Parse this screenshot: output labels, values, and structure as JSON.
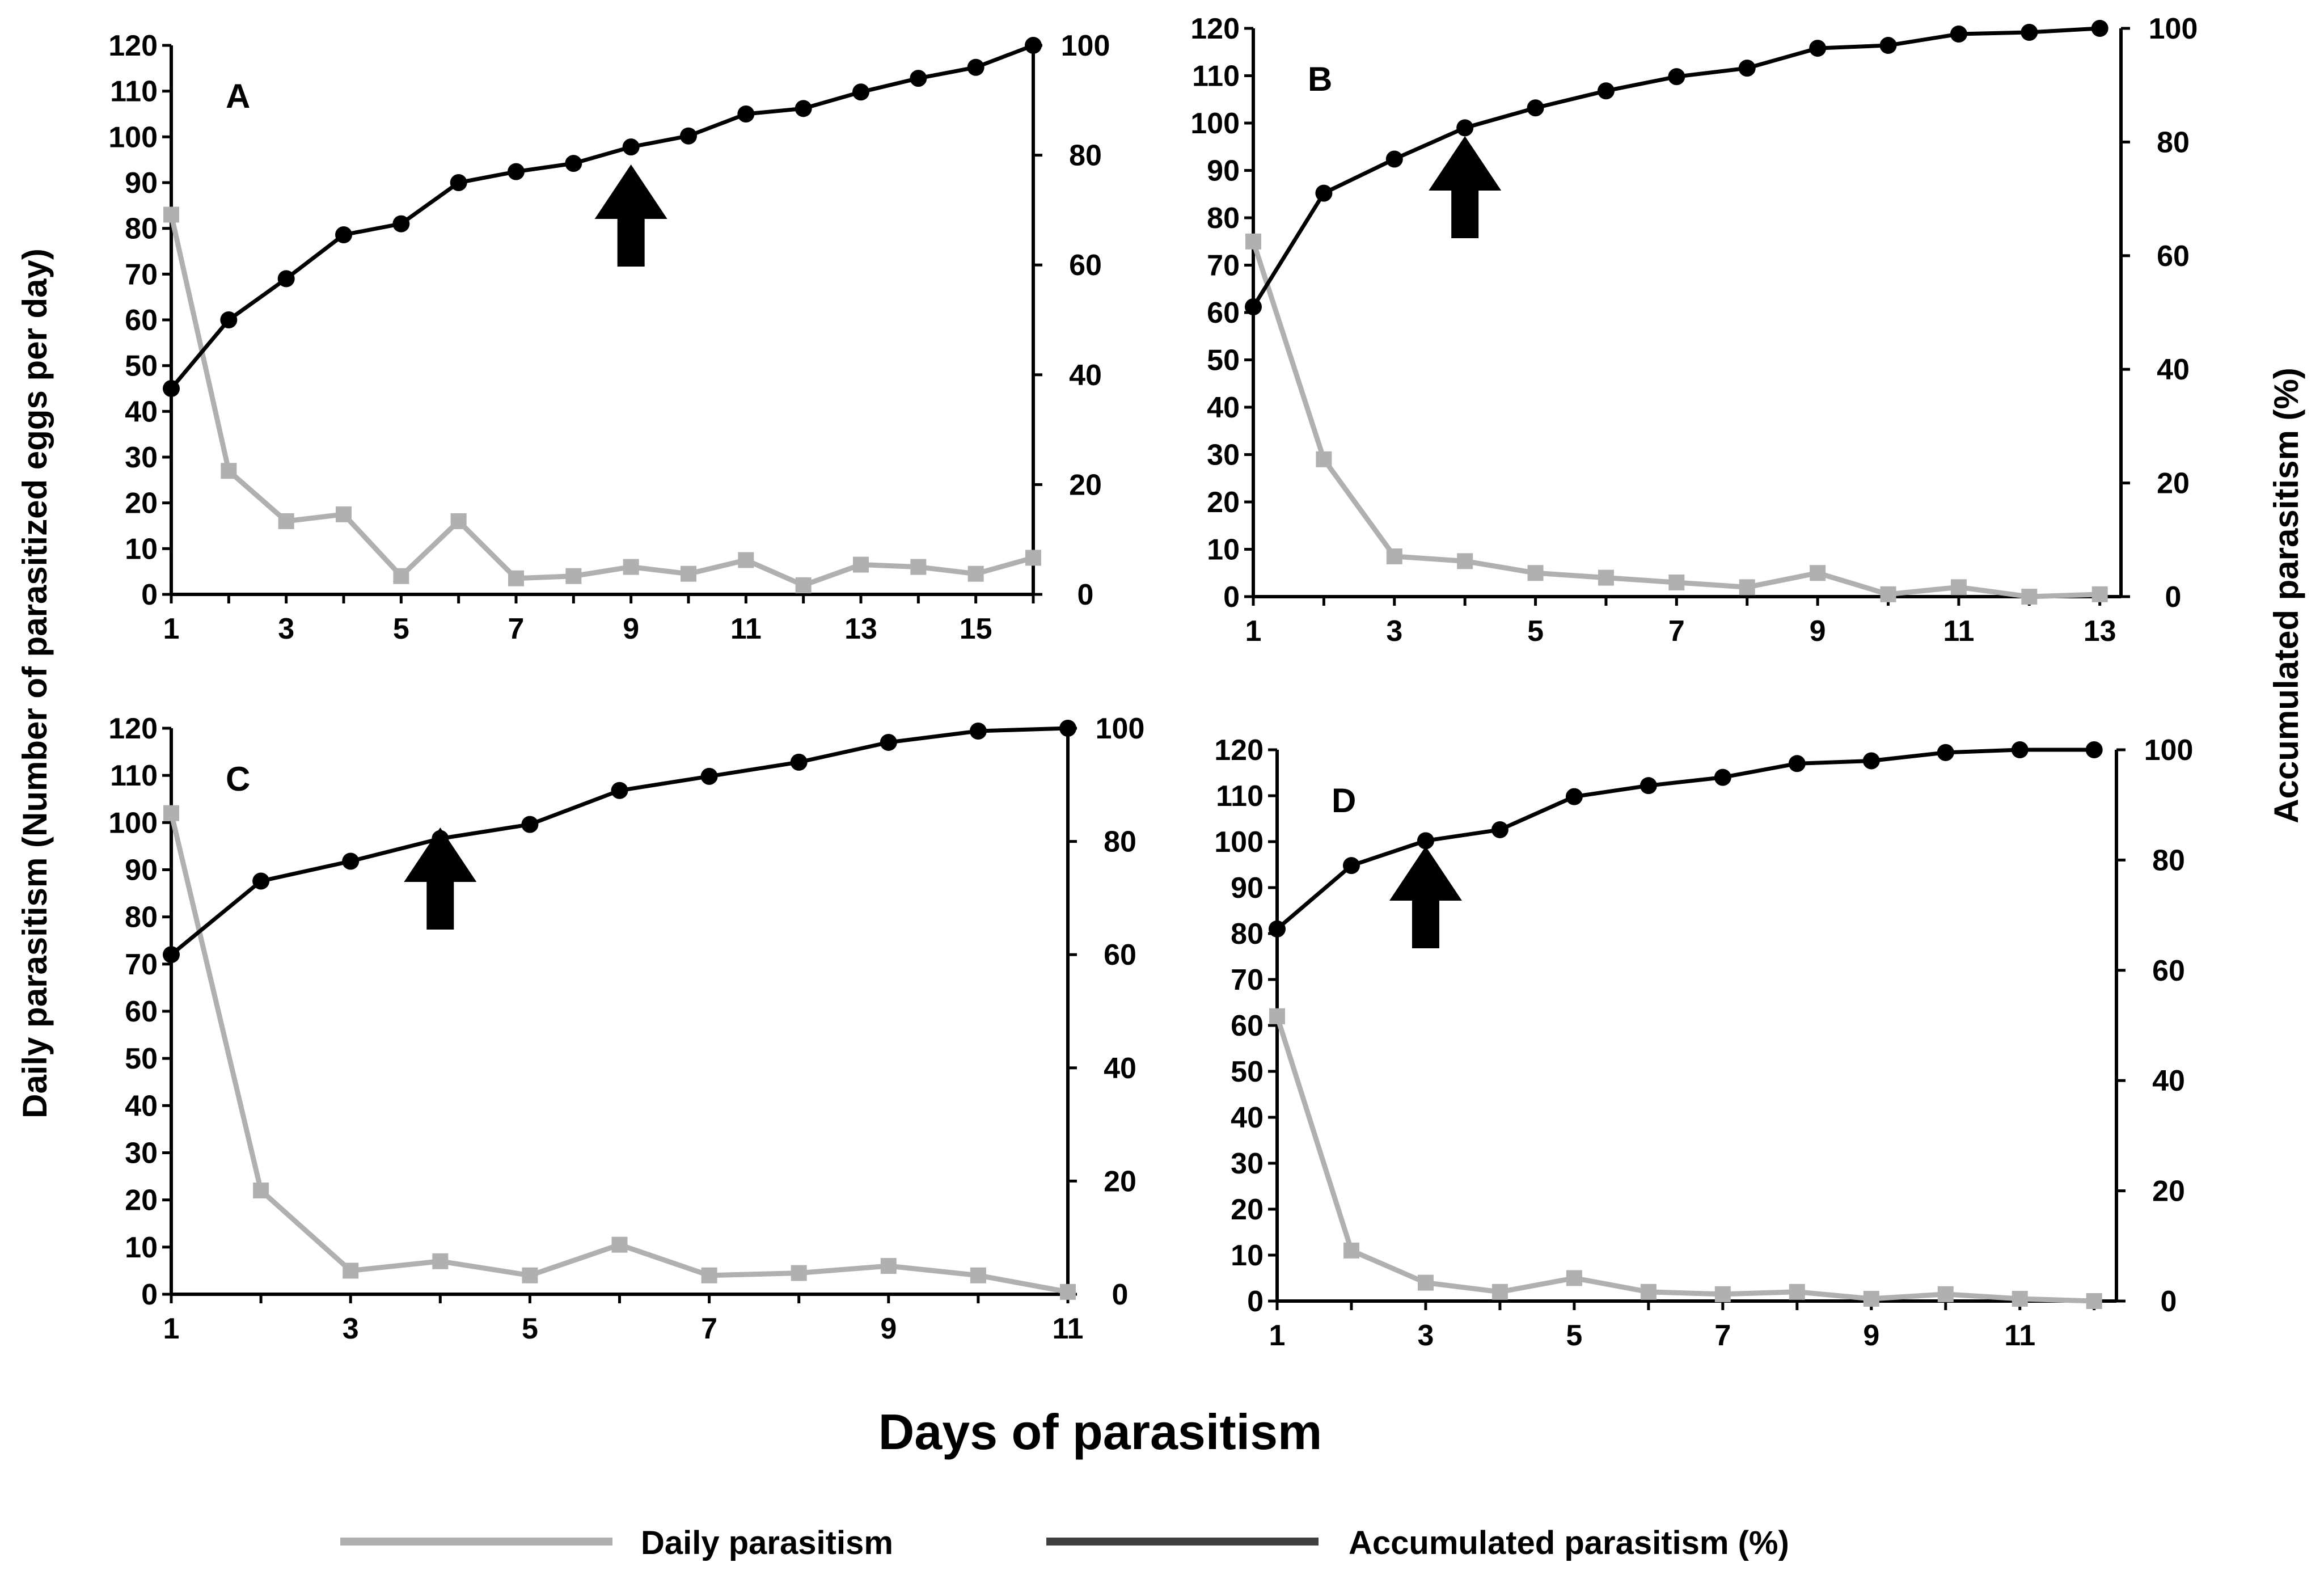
{
  "figure": {
    "y_left_title": "Daily parasitism (Number of parasitized eggs per day)",
    "y_right_title": "Accumulated parasitism (%)",
    "x_title": "Days of parasitism"
  },
  "legend": {
    "daily_label": "Daily parasitism",
    "accumulated_label": "Accumulated parasitism (%)",
    "daily_color": "#b0b0b0",
    "accumulated_color": "#404040"
  },
  "chart_data": [
    {
      "type": "line",
      "panel": "A",
      "x": [
        1,
        2,
        3,
        4,
        5,
        6,
        7,
        8,
        9,
        10,
        11,
        12,
        13,
        14,
        15,
        16
      ],
      "x_ticks": [
        1,
        3,
        5,
        7,
        9,
        11,
        13,
        15
      ],
      "xlim": [
        1,
        16
      ],
      "ylim_left": [
        0,
        120
      ],
      "ylim_right": [
        0,
        100
      ],
      "y_left_ticks": [
        0,
        10,
        20,
        30,
        40,
        50,
        60,
        70,
        80,
        90,
        100,
        110,
        120
      ],
      "y_right_ticks": [
        0,
        20,
        40,
        60,
        80,
        100
      ],
      "arrow_day": 9,
      "series": [
        {
          "name": "Daily parasitism",
          "axis": "left",
          "values": [
            83,
            27,
            16,
            17.5,
            4,
            16,
            3.5,
            4,
            6,
            4.5,
            7.5,
            2,
            6.5,
            6,
            4.5,
            8
          ]
        },
        {
          "name": "Accumulated parasitism (%)",
          "axis": "right",
          "values": [
            37.5,
            50,
            57.5,
            65.5,
            67.5,
            75,
            77,
            78.5,
            81.5,
            83.5,
            87.5,
            88.5,
            91.5,
            94,
            96,
            100
          ]
        }
      ]
    },
    {
      "type": "line",
      "panel": "B",
      "x": [
        1,
        2,
        3,
        4,
        5,
        6,
        7,
        8,
        9,
        10,
        11,
        12,
        13
      ],
      "x_ticks": [
        1,
        3,
        5,
        7,
        9,
        11,
        13
      ],
      "xlim": [
        1,
        13.3
      ],
      "ylim_left": [
        0,
        120
      ],
      "ylim_right": [
        0,
        100
      ],
      "y_left_ticks": [
        0,
        10,
        20,
        30,
        40,
        50,
        60,
        70,
        80,
        90,
        100,
        110,
        120
      ],
      "y_right_ticks": [
        0,
        20,
        40,
        60,
        80,
        100
      ],
      "arrow_day": 4,
      "series": [
        {
          "name": "Daily parasitism",
          "axis": "left",
          "values": [
            75,
            29,
            8.5,
            7.5,
            5,
            4,
            3,
            2,
            5,
            0.5,
            2,
            0,
            0.5
          ]
        },
        {
          "name": "Accumulated parasitism (%)",
          "axis": "right",
          "values": [
            51,
            71,
            77,
            82.5,
            86,
            89,
            91.5,
            93,
            96.5,
            97,
            99,
            99.3,
            100
          ]
        }
      ]
    },
    {
      "type": "line",
      "panel": "C",
      "x": [
        1,
        2,
        3,
        4,
        5,
        6,
        7,
        8,
        9,
        10,
        11
      ],
      "x_ticks": [
        1,
        3,
        5,
        7,
        9,
        11
      ],
      "xlim": [
        1,
        11
      ],
      "ylim_left": [
        0,
        120
      ],
      "ylim_right": [
        0,
        100
      ],
      "y_left_ticks": [
        0,
        10,
        20,
        30,
        40,
        50,
        60,
        70,
        80,
        90,
        100,
        110,
        120
      ],
      "y_right_ticks": [
        0,
        20,
        40,
        60,
        80,
        100
      ],
      "arrow_day": 4,
      "series": [
        {
          "name": "Daily parasitism",
          "axis": "left",
          "values": [
            102,
            22,
            5,
            7,
            4,
            10.5,
            4,
            4.5,
            6,
            4,
            0.5
          ]
        },
        {
          "name": "Accumulated parasitism (%)",
          "axis": "right",
          "values": [
            60,
            73,
            76.5,
            80.5,
            83,
            89,
            91.5,
            94,
            97.5,
            99.5,
            100
          ]
        }
      ]
    },
    {
      "type": "line",
      "panel": "D",
      "x": [
        1,
        2,
        3,
        4,
        5,
        6,
        7,
        8,
        9,
        10,
        11,
        12
      ],
      "x_ticks": [
        1,
        3,
        5,
        7,
        9,
        11
      ],
      "xlim": [
        1,
        12.3
      ],
      "ylim_left": [
        0,
        120
      ],
      "ylim_right": [
        0,
        100
      ],
      "y_left_ticks": [
        0,
        10,
        20,
        30,
        40,
        50,
        60,
        70,
        80,
        90,
        100,
        110,
        120
      ],
      "y_right_ticks": [
        0,
        20,
        40,
        60,
        80,
        100
      ],
      "arrow_day": 3,
      "series": [
        {
          "name": "Daily parasitism",
          "axis": "left",
          "values": [
            62,
            11,
            4,
            2,
            5,
            2,
            1.5,
            2,
            0.5,
            1.5,
            0.5,
            0
          ]
        },
        {
          "name": "Accumulated parasitism (%)",
          "axis": "right",
          "values": [
            67.5,
            79,
            83.5,
            85.5,
            91.5,
            93.5,
            95,
            97.5,
            98,
            99.5,
            100,
            100
          ]
        }
      ]
    }
  ]
}
